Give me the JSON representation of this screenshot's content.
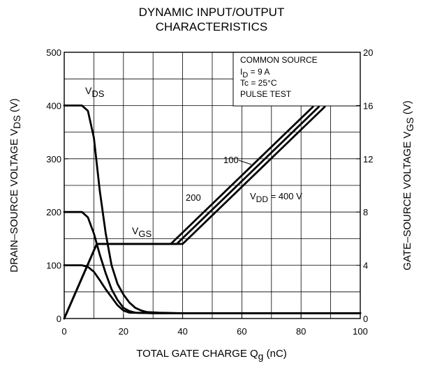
{
  "title_lines": [
    "DYNAMIC INPUT/OUTPUT",
    "CHARACTERISTICS"
  ],
  "legend_box": [
    "COMMON SOURCE",
    "ID = 9 A",
    "Tc = 25°C",
    "PULSE TEST"
  ],
  "chart_data": {
    "type": "line",
    "title": "DYNAMIC INPUT/OUTPUT CHARACTERISTICS",
    "xlabel": "TOTAL GATE CHARGE   Qg   (nC)",
    "ylabel_left": "DRAIN–SOURCE VOLTAGE   VDS   (V)",
    "ylabel_right": "GATE–SOURCE VOLTAGE   VGS   (V)",
    "xlim": [
      0,
      100
    ],
    "ylim_left": [
      0,
      500
    ],
    "ylim_right": [
      0,
      20
    ],
    "x_ticks": [
      "0",
      "20",
      "40",
      "60",
      "80",
      "100"
    ],
    "y_ticks_left": [
      "0",
      "100",
      "200",
      "300",
      "400",
      "500"
    ],
    "y_ticks_right": [
      "0",
      "4",
      "8",
      "12",
      "16",
      "20"
    ],
    "grid": true,
    "conditions": {
      "common_source": true,
      "ID_A": 9,
      "Tc_C": 25,
      "pulse_test": true
    },
    "labels": {
      "vds": "VDS",
      "vgs": "VGS",
      "vdd_100": "100",
      "vdd_200": "200",
      "vdd_400": "VDD = 400 V"
    },
    "series": [
      {
        "name": "VDS, VDD = 400 V",
        "axis": "left",
        "x": [
          0,
          6,
          8,
          10,
          12,
          14,
          16,
          18,
          20,
          22,
          24,
          26,
          28,
          32,
          40,
          100
        ],
        "y": [
          400,
          400,
          390,
          340,
          240,
          160,
          100,
          65,
          45,
          30,
          20,
          15,
          12,
          11,
          10,
          10
        ]
      },
      {
        "name": "VDS, VDD = 200 V",
        "axis": "left",
        "x": [
          0,
          6,
          8,
          10,
          12,
          14,
          16,
          18,
          20,
          22,
          24,
          30,
          100
        ],
        "y": [
          200,
          200,
          190,
          160,
          120,
          85,
          55,
          35,
          20,
          14,
          11,
          10,
          10
        ]
      },
      {
        "name": "VDS, VDD = 100 V",
        "axis": "left",
        "x": [
          0,
          6,
          8,
          10,
          12,
          14,
          16,
          18,
          20,
          22,
          30,
          100
        ],
        "y": [
          100,
          100,
          97,
          88,
          72,
          55,
          40,
          25,
          15,
          11,
          10,
          10
        ]
      },
      {
        "name": "VGS, VDD = 100 V",
        "axis": "right",
        "x": [
          0,
          11,
          36,
          84
        ],
        "y": [
          0,
          5.6,
          5.6,
          15.9
        ]
      },
      {
        "name": "VGS, VDD = 200 V",
        "axis": "right",
        "x": [
          0,
          11,
          38,
          86
        ],
        "y": [
          0,
          5.6,
          5.6,
          15.9
        ]
      },
      {
        "name": "VGS, VDD = 400 V",
        "axis": "right",
        "x": [
          0,
          11,
          40,
          88
        ],
        "y": [
          0,
          5.6,
          5.6,
          15.9
        ]
      }
    ]
  }
}
